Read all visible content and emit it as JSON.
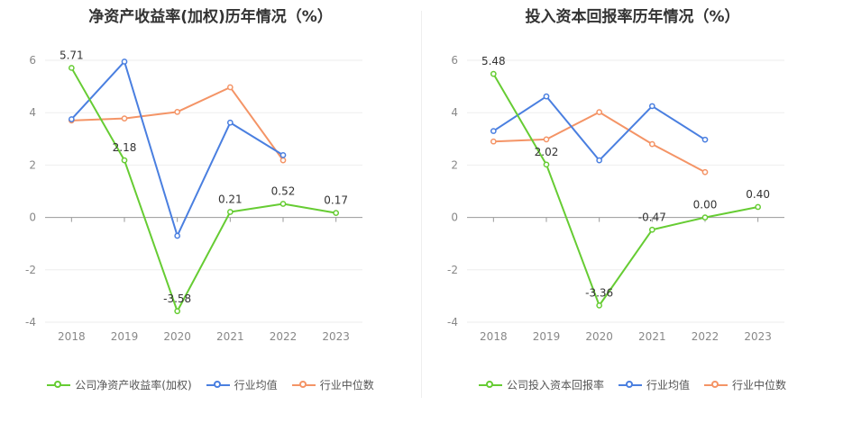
{
  "chart_data": [
    {
      "type": "line",
      "title": "净资产收益率(加权)历年情况（%）",
      "categories": [
        "2018",
        "2019",
        "2020",
        "2021",
        "2022",
        "2023"
      ],
      "ylim": [
        -4,
        6
      ],
      "yticks": [
        -4,
        -2,
        0,
        2,
        4,
        6
      ],
      "grid": true,
      "legend_position": "bottom",
      "series": [
        {
          "name": "公司净资产收益率(加权)",
          "color": "#66cc33",
          "values": [
            5.71,
            2.18,
            -3.58,
            0.21,
            0.52,
            0.17
          ],
          "labels": [
            "5.71",
            "2.18",
            "-3.58",
            "0.21",
            "0.52",
            "0.17"
          ]
        },
        {
          "name": "行业均值",
          "color": "#4a7fe0",
          "values": [
            3.75,
            5.95,
            -0.7,
            3.62,
            2.38,
            null
          ]
        },
        {
          "name": "行业中位数",
          "color": "#f49466",
          "values": [
            3.7,
            3.78,
            4.03,
            4.97,
            2.18,
            null
          ]
        }
      ]
    },
    {
      "type": "line",
      "title": "投入资本回报率历年情况（%）",
      "categories": [
        "2018",
        "2019",
        "2020",
        "2021",
        "2022",
        "2023"
      ],
      "ylim": [
        -4,
        6
      ],
      "yticks": [
        -4,
        -2,
        0,
        2,
        4,
        6
      ],
      "grid": true,
      "legend_position": "bottom",
      "series": [
        {
          "name": "公司投入资本回报率",
          "color": "#66cc33",
          "values": [
            5.48,
            2.02,
            -3.36,
            -0.47,
            0.0,
            0.4
          ],
          "labels": [
            "5.48",
            "2.02",
            "-3.36",
            "-0.47",
            "0.00",
            "0.40"
          ]
        },
        {
          "name": "行业均值",
          "color": "#4a7fe0",
          "values": [
            3.3,
            4.62,
            2.18,
            4.25,
            2.97,
            null
          ]
        },
        {
          "name": "行业中位数",
          "color": "#f49466",
          "values": [
            2.9,
            2.98,
            4.02,
            2.8,
            1.73,
            null
          ]
        }
      ]
    }
  ]
}
